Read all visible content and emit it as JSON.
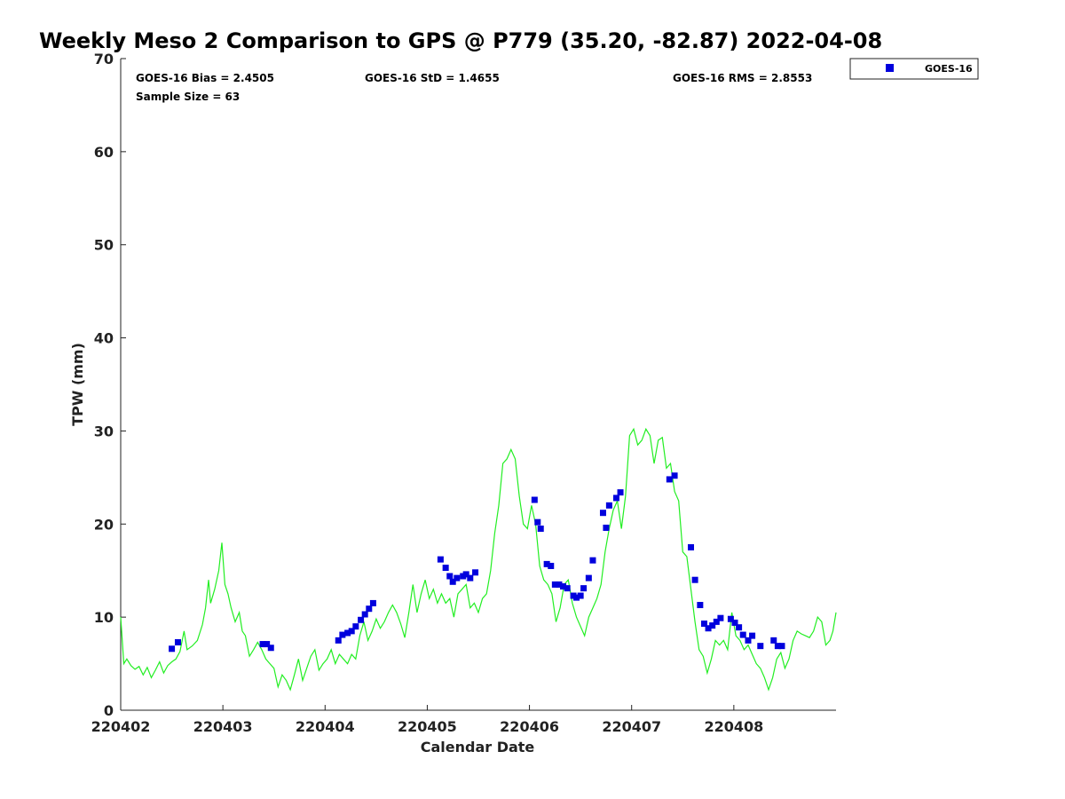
{
  "chart_data": {
    "type": "scatter",
    "title": "Weekly Meso 2 Comparison to GPS @ P779 (35.20, -82.87) 2022-04-08",
    "xlabel": "Calendar Date",
    "ylabel": "TPW (mm)",
    "xlim": [
      0.0,
      7.0
    ],
    "ylim": [
      0,
      70
    ],
    "x_ticks": [
      0,
      1,
      2,
      3,
      4,
      5,
      6
    ],
    "x_tick_labels": [
      "220402",
      "220403",
      "220404",
      "220405",
      "220406",
      "220407",
      "220408"
    ],
    "y_ticks": [
      0,
      10,
      20,
      30,
      40,
      50,
      60,
      70
    ],
    "y_tick_labels": [
      "0",
      "10",
      "20",
      "30",
      "40",
      "50",
      "60",
      "70"
    ],
    "grid": false,
    "legend_position": "top-right, outside plot",
    "stats": {
      "bias": "GOES-16 Bias = 2.4505",
      "std": "GOES-16 StD = 1.4655",
      "rms": "GOES-16 RMS = 2.8553",
      "sample": "Sample Size = 63"
    },
    "series": [
      {
        "name": "GOES-16",
        "kind": "scatter",
        "marker": "square",
        "color": "#0000dd",
        "points": [
          [
            0.5,
            6.6
          ],
          [
            0.56,
            7.3
          ],
          [
            1.39,
            7.1
          ],
          [
            1.43,
            7.1
          ],
          [
            1.47,
            6.7
          ],
          [
            2.13,
            7.5
          ],
          [
            2.17,
            8.1
          ],
          [
            2.22,
            8.3
          ],
          [
            2.26,
            8.5
          ],
          [
            2.3,
            9.0
          ],
          [
            2.35,
            9.7
          ],
          [
            2.39,
            10.3
          ],
          [
            2.43,
            10.9
          ],
          [
            2.47,
            11.5
          ],
          [
            3.13,
            16.2
          ],
          [
            3.18,
            15.3
          ],
          [
            3.22,
            14.4
          ],
          [
            3.25,
            13.8
          ],
          [
            3.29,
            14.2
          ],
          [
            3.35,
            14.4
          ],
          [
            3.38,
            14.6
          ],
          [
            3.42,
            14.2
          ],
          [
            3.47,
            14.8
          ],
          [
            4.05,
            22.6
          ],
          [
            4.08,
            20.2
          ],
          [
            4.11,
            19.5
          ],
          [
            4.17,
            15.7
          ],
          [
            4.21,
            15.5
          ],
          [
            4.25,
            13.5
          ],
          [
            4.29,
            13.5
          ],
          [
            4.33,
            13.3
          ],
          [
            4.37,
            13.1
          ],
          [
            4.43,
            12.3
          ],
          [
            4.46,
            12.1
          ],
          [
            4.5,
            12.3
          ],
          [
            4.53,
            13.1
          ],
          [
            4.58,
            14.2
          ],
          [
            4.62,
            16.1
          ],
          [
            4.72,
            21.2
          ],
          [
            4.75,
            19.6
          ],
          [
            4.78,
            22.0
          ],
          [
            4.85,
            22.8
          ],
          [
            4.89,
            23.4
          ],
          [
            5.37,
            24.8
          ],
          [
            5.42,
            25.2
          ],
          [
            5.58,
            17.5
          ],
          [
            5.62,
            14.0
          ],
          [
            5.67,
            11.3
          ],
          [
            5.71,
            9.3
          ],
          [
            5.75,
            8.8
          ],
          [
            5.79,
            9.1
          ],
          [
            5.83,
            9.5
          ],
          [
            5.87,
            9.9
          ],
          [
            5.97,
            9.8
          ],
          [
            6.01,
            9.4
          ],
          [
            6.05,
            8.9
          ],
          [
            6.09,
            8.1
          ],
          [
            6.14,
            7.5
          ],
          [
            6.18,
            8.0
          ],
          [
            6.26,
            6.9
          ],
          [
            6.39,
            7.5
          ],
          [
            6.43,
            6.9
          ],
          [
            6.47,
            6.9
          ]
        ]
      },
      {
        "name": "",
        "kind": "line",
        "color": "#22ee22",
        "points": [
          [
            0.0,
            10.0
          ],
          [
            0.03,
            5.0
          ],
          [
            0.06,
            5.5
          ],
          [
            0.1,
            4.8
          ],
          [
            0.14,
            4.4
          ],
          [
            0.18,
            4.7
          ],
          [
            0.22,
            3.8
          ],
          [
            0.26,
            4.6
          ],
          [
            0.3,
            3.5
          ],
          [
            0.34,
            4.3
          ],
          [
            0.38,
            5.2
          ],
          [
            0.42,
            4.0
          ],
          [
            0.46,
            4.8
          ],
          [
            0.5,
            5.2
          ],
          [
            0.54,
            5.5
          ],
          [
            0.58,
            6.3
          ],
          [
            0.62,
            8.5
          ],
          [
            0.65,
            6.5
          ],
          [
            0.7,
            6.9
          ],
          [
            0.75,
            7.5
          ],
          [
            0.8,
            9.2
          ],
          [
            0.83,
            11.0
          ],
          [
            0.86,
            14.0
          ],
          [
            0.88,
            11.5
          ],
          [
            0.92,
            13.0
          ],
          [
            0.96,
            15.0
          ],
          [
            0.99,
            18.0
          ],
          [
            1.02,
            13.5
          ],
          [
            1.05,
            12.5
          ],
          [
            1.08,
            11.0
          ],
          [
            1.12,
            9.5
          ],
          [
            1.16,
            10.5
          ],
          [
            1.19,
            8.5
          ],
          [
            1.22,
            8.0
          ],
          [
            1.26,
            5.8
          ],
          [
            1.3,
            6.5
          ],
          [
            1.34,
            7.3
          ],
          [
            1.38,
            6.5
          ],
          [
            1.42,
            5.5
          ],
          [
            1.46,
            5.0
          ],
          [
            1.5,
            4.5
          ],
          [
            1.54,
            2.5
          ],
          [
            1.58,
            3.8
          ],
          [
            1.62,
            3.2
          ],
          [
            1.66,
            2.2
          ],
          [
            1.7,
            3.8
          ],
          [
            1.74,
            5.5
          ],
          [
            1.78,
            3.2
          ],
          [
            1.82,
            4.5
          ],
          [
            1.86,
            5.8
          ],
          [
            1.9,
            6.5
          ],
          [
            1.94,
            4.3
          ],
          [
            1.98,
            5.0
          ],
          [
            2.02,
            5.5
          ],
          [
            2.06,
            6.5
          ],
          [
            2.1,
            5.0
          ],
          [
            2.14,
            6.0
          ],
          [
            2.18,
            5.5
          ],
          [
            2.22,
            5.0
          ],
          [
            2.26,
            6.0
          ],
          [
            2.3,
            5.5
          ],
          [
            2.34,
            8.0
          ],
          [
            2.38,
            9.5
          ],
          [
            2.42,
            7.5
          ],
          [
            2.46,
            8.5
          ],
          [
            2.5,
            9.8
          ],
          [
            2.54,
            8.8
          ],
          [
            2.58,
            9.5
          ],
          [
            2.62,
            10.5
          ],
          [
            2.66,
            11.3
          ],
          [
            2.7,
            10.5
          ],
          [
            2.74,
            9.3
          ],
          [
            2.78,
            7.8
          ],
          [
            2.82,
            10.5
          ],
          [
            2.86,
            13.5
          ],
          [
            2.9,
            10.5
          ],
          [
            2.94,
            12.5
          ],
          [
            2.98,
            14.0
          ],
          [
            3.02,
            12.0
          ],
          [
            3.06,
            13.0
          ],
          [
            3.1,
            11.5
          ],
          [
            3.14,
            12.5
          ],
          [
            3.18,
            11.5
          ],
          [
            3.22,
            12.0
          ],
          [
            3.26,
            10.0
          ],
          [
            3.3,
            12.5
          ],
          [
            3.34,
            13.0
          ],
          [
            3.38,
            13.5
          ],
          [
            3.42,
            11.0
          ],
          [
            3.46,
            11.5
          ],
          [
            3.5,
            10.5
          ],
          [
            3.54,
            12.0
          ],
          [
            3.58,
            12.5
          ],
          [
            3.62,
            15.0
          ],
          [
            3.66,
            19.0
          ],
          [
            3.7,
            22.0
          ],
          [
            3.74,
            26.5
          ],
          [
            3.78,
            27.0
          ],
          [
            3.82,
            28.0
          ],
          [
            3.86,
            27.0
          ],
          [
            3.9,
            23.0
          ],
          [
            3.94,
            20.0
          ],
          [
            3.98,
            19.5
          ],
          [
            4.02,
            22.0
          ],
          [
            4.06,
            20.0
          ],
          [
            4.1,
            15.5
          ],
          [
            4.14,
            14.0
          ],
          [
            4.18,
            13.5
          ],
          [
            4.22,
            12.5
          ],
          [
            4.26,
            9.5
          ],
          [
            4.3,
            11.0
          ],
          [
            4.34,
            13.5
          ],
          [
            4.38,
            14.0
          ],
          [
            4.42,
            11.5
          ],
          [
            4.46,
            10.0
          ],
          [
            4.5,
            9.0
          ],
          [
            4.54,
            8.0
          ],
          [
            4.58,
            10.0
          ],
          [
            4.62,
            11.0
          ],
          [
            4.66,
            12.0
          ],
          [
            4.7,
            13.5
          ],
          [
            4.74,
            17.0
          ],
          [
            4.78,
            19.5
          ],
          [
            4.82,
            21.5
          ],
          [
            4.86,
            22.5
          ],
          [
            4.9,
            19.5
          ],
          [
            4.94,
            23.0
          ],
          [
            4.98,
            29.5
          ],
          [
            5.02,
            30.2
          ],
          [
            5.06,
            28.5
          ],
          [
            5.1,
            29.0
          ],
          [
            5.14,
            30.2
          ],
          [
            5.18,
            29.5
          ],
          [
            5.22,
            26.5
          ],
          [
            5.26,
            29.0
          ],
          [
            5.3,
            29.3
          ],
          [
            5.34,
            26.0
          ],
          [
            5.38,
            26.5
          ],
          [
            5.42,
            23.5
          ],
          [
            5.46,
            22.5
          ],
          [
            5.5,
            17.0
          ],
          [
            5.54,
            16.5
          ],
          [
            5.58,
            13.0
          ],
          [
            5.62,
            9.5
          ],
          [
            5.66,
            6.5
          ],
          [
            5.7,
            5.8
          ],
          [
            5.74,
            4.0
          ],
          [
            5.78,
            5.5
          ],
          [
            5.82,
            7.5
          ],
          [
            5.86,
            7.0
          ],
          [
            5.9,
            7.5
          ],
          [
            5.94,
            6.5
          ],
          [
            5.98,
            10.5
          ],
          [
            6.02,
            8.0
          ],
          [
            6.06,
            7.5
          ],
          [
            6.1,
            6.5
          ],
          [
            6.14,
            7.0
          ],
          [
            6.18,
            6.0
          ],
          [
            6.22,
            5.0
          ],
          [
            6.26,
            4.5
          ],
          [
            6.3,
            3.5
          ],
          [
            6.34,
            2.2
          ],
          [
            6.38,
            3.5
          ],
          [
            6.42,
            5.5
          ],
          [
            6.46,
            6.2
          ],
          [
            6.5,
            4.5
          ],
          [
            6.54,
            5.5
          ],
          [
            6.58,
            7.5
          ],
          [
            6.62,
            8.5
          ],
          [
            6.66,
            8.2
          ],
          [
            6.7,
            8.0
          ],
          [
            6.74,
            7.8
          ],
          [
            6.78,
            8.5
          ],
          [
            6.82,
            10.0
          ],
          [
            6.86,
            9.5
          ],
          [
            6.9,
            7.0
          ],
          [
            6.94,
            7.5
          ],
          [
            6.97,
            8.5
          ],
          [
            7.0,
            10.5
          ]
        ]
      }
    ]
  }
}
